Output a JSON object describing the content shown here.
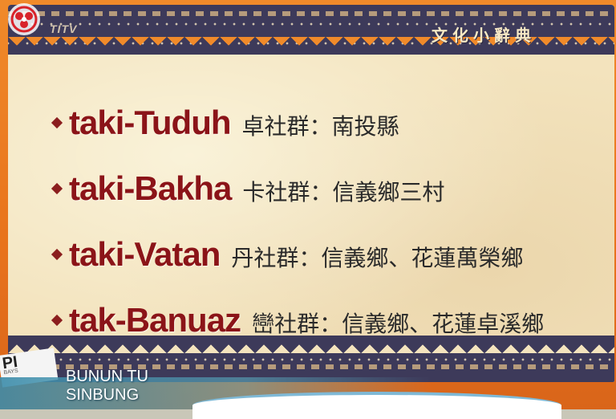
{
  "channel_logo": "TITV",
  "dictionary": {
    "title": "文化小辭典",
    "entries": [
      {
        "term": "taki-Tuduh",
        "desc": "卓社群：南投縣"
      },
      {
        "term": "taki-Bakha",
        "desc": "卡社群：信義鄉三村"
      },
      {
        "term": "taki-Vatan",
        "desc": "丹社群：信義鄉、花蓮萬榮鄉"
      },
      {
        "term": "tak-Banuaz",
        "desc": "巒社群：信義鄉、花蓮卓溪鄉"
      }
    ]
  },
  "caption": {
    "line1": "BUNUN TU",
    "line2": "SINBUNG"
  },
  "sticker": {
    "label": "PI",
    "small": "BAYS"
  },
  "colors": {
    "frame": "#e8731c",
    "parchment": "#f3e3bd",
    "band": "#3d3a5a",
    "term": "#8b1418"
  },
  "icons": {
    "logo": "flower-logo-icon",
    "bullet": "diamond-bullet-icon"
  }
}
